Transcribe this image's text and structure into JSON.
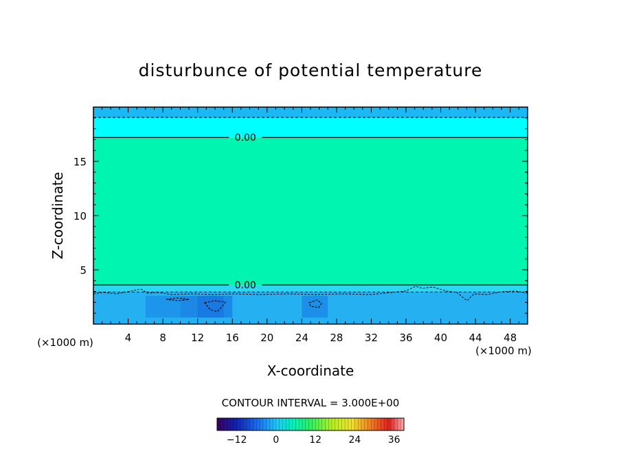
{
  "chart_data": {
    "type": "heatmap",
    "title": "disturbunce of potential temperature",
    "xlabel": "X-coordinate",
    "ylabel": "Z-coordinate",
    "x_unit": "(×1000 m)",
    "x_unit_right": "(×1000 m)",
    "xlim": [
      0,
      50
    ],
    "ylim": [
      0,
      20
    ],
    "x_ticks": [
      4,
      8,
      12,
      16,
      20,
      24,
      28,
      32,
      36,
      40,
      44,
      48
    ],
    "y_ticks": [
      5,
      10,
      15
    ],
    "contour_labels": [
      {
        "text": "0.00",
        "x": 17.5,
        "z": 17.2
      },
      {
        "text": "0.00",
        "x": 17.5,
        "z": 3.6
      }
    ],
    "field_bands": [
      {
        "z_from": 19.0,
        "z_to": 20.0,
        "color": "#1ab8f5"
      },
      {
        "z_from": 17.2,
        "z_to": 19.0,
        "color": "#00ffff"
      },
      {
        "z_from": 3.6,
        "z_to": 17.2,
        "color": "#00f5b0"
      },
      {
        "z_from": 3.0,
        "z_to": 3.6,
        "color": "#2bd8f0"
      },
      {
        "z_from": 0.0,
        "z_to": 3.0,
        "color": "#25b0f2"
      }
    ],
    "zero_contour_z": [
      17.2,
      3.6
    ],
    "negative_contour_z": [
      19.05,
      2.95
    ],
    "contour_interval_label": "CONTOUR INTERVAL = 3.000E+00",
    "colorbar": {
      "min": -18,
      "max": 39,
      "tick_labels": [
        "−12",
        "0",
        "12",
        "24",
        "36"
      ],
      "tick_values": [
        -12,
        0,
        12,
        24,
        36
      ]
    }
  }
}
